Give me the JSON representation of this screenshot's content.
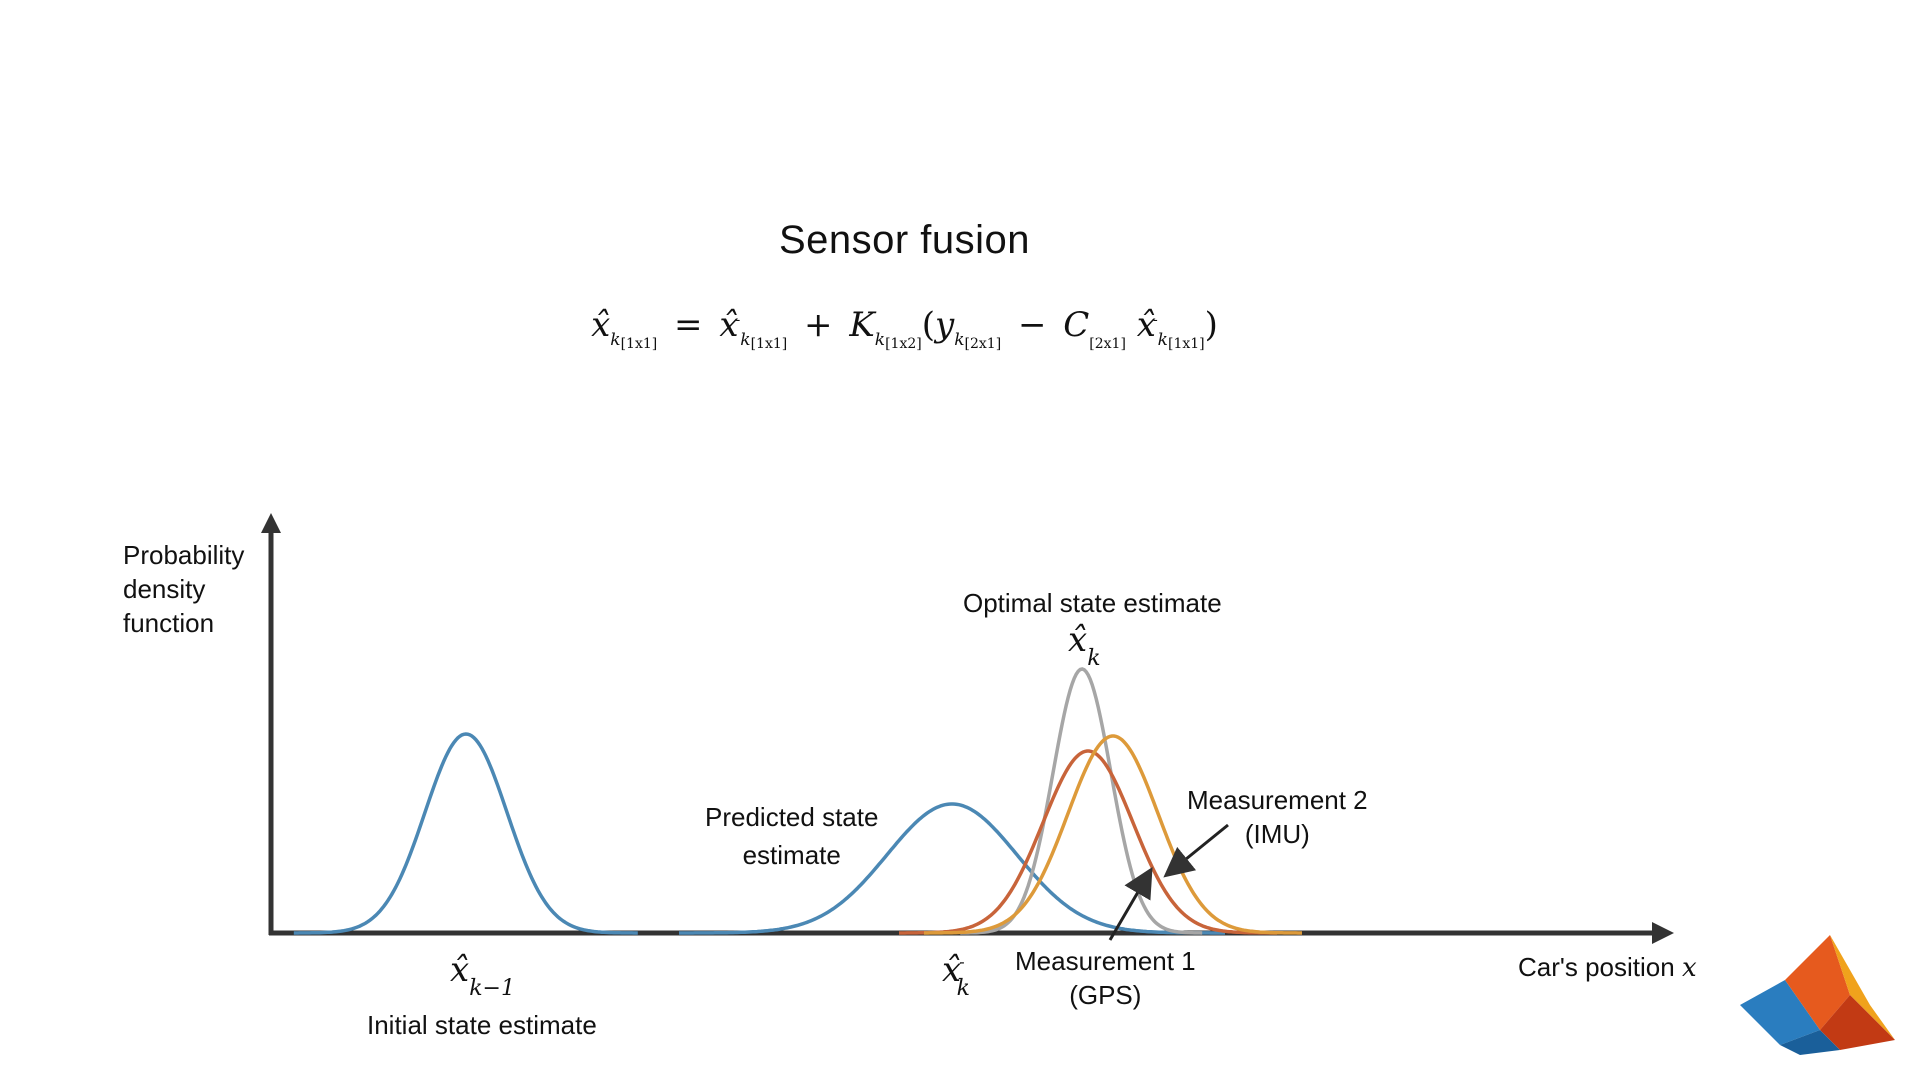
{
  "title": "Sensor fusion",
  "equation": {
    "lhs": "x̂",
    "lhs_sub": "k",
    "lhs_dim": "[1x1]",
    "equals": "=",
    "t1": "x̂",
    "t1_sup": "-",
    "t1_sub": "k",
    "t1_dim": "[1x1]",
    "plus": "+",
    "gain": "K",
    "gain_sub": "k",
    "gain_dim": "[1x2]",
    "open": "(",
    "y": "y",
    "y_sub": "k",
    "y_dim": "[2x1]",
    "minus": "−",
    "c": "C",
    "c_dim": "[2x1]",
    "t2": "x̂",
    "t2_sup": "-",
    "t2_sub": "k",
    "t2_dim": "[1x1]",
    "close": ")"
  },
  "axes": {
    "y_label": [
      "Probability",
      "density",
      "function"
    ],
    "x_label": "Car's position",
    "x_var": "x"
  },
  "annotations": {
    "optimal_label": "Optimal state estimate",
    "optimal_symbol": "x̂",
    "optimal_sub": "k",
    "predicted_label": [
      "Predicted state",
      "estimate"
    ],
    "measurement2_label": [
      "Measurement 2",
      "(IMU)"
    ],
    "measurement1_label": [
      "Measurement 1",
      "(GPS)"
    ],
    "initial_label": "Initial state estimate",
    "initial_symbol": "x̂",
    "initial_sub": "k−1",
    "predicted_symbol": "x̂",
    "predicted_sup": "-",
    "predicted_sub": "k"
  },
  "colors": {
    "blue": "#4b88b4",
    "gray": "#a6a6a6",
    "red": "#c8643a",
    "orange": "#dd9a3a",
    "axis": "#333333"
  }
}
